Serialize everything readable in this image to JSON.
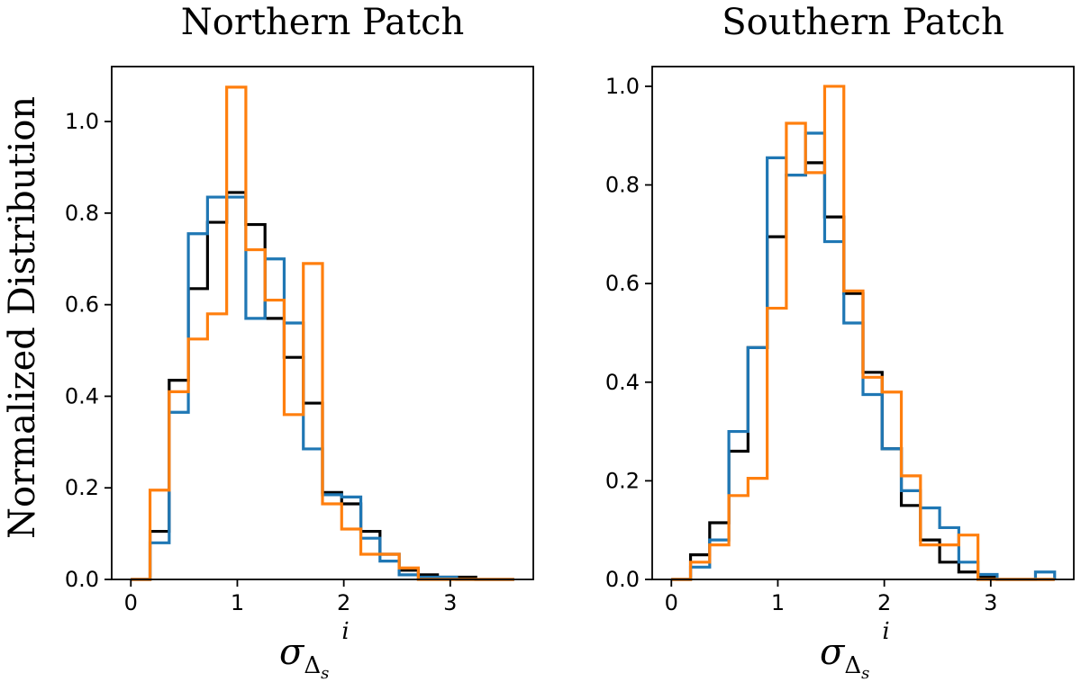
{
  "chart_data": [
    {
      "type": "step-histogram",
      "title": "Northern Patch",
      "ylabel": "Normalized Distribution",
      "xlabel": {
        "base": "σ",
        "sub": "Δ",
        "subsub": "s",
        "sup": "i"
      },
      "xlim": [
        -0.18,
        3.78
      ],
      "ylim": [
        0,
        1.12
      ],
      "xticks": [
        0,
        1,
        2,
        3
      ],
      "yticks": [
        0.0,
        0.2,
        0.4,
        0.6,
        0.8,
        1.0
      ],
      "ytick_labels": [
        "0.0",
        "0.2",
        "0.4",
        "0.6",
        "0.8",
        "1.0"
      ],
      "bin_edges": [
        0.0,
        0.18,
        0.36,
        0.54,
        0.72,
        0.9,
        1.08,
        1.26,
        1.44,
        1.62,
        1.8,
        1.98,
        2.16,
        2.34,
        2.52,
        2.7,
        2.88,
        3.06,
        3.24,
        3.42,
        3.6
      ],
      "series": [
        {
          "color": "#000000",
          "values": [
            0.0,
            0.105,
            0.435,
            0.635,
            0.78,
            0.845,
            0.775,
            0.57,
            0.485,
            0.385,
            0.19,
            0.165,
            0.105,
            0.055,
            0.02,
            0.01,
            0.005,
            0.005,
            0.0,
            0.0
          ]
        },
        {
          "color": "#1f77b4",
          "values": [
            0.0,
            0.08,
            0.365,
            0.755,
            0.835,
            0.835,
            0.57,
            0.7,
            0.56,
            0.285,
            0.185,
            0.18,
            0.09,
            0.04,
            0.01,
            0.005,
            0.005,
            0.0,
            0.0,
            0.0
          ]
        },
        {
          "color": "#ff7f0e",
          "values": [
            0.0,
            0.195,
            0.41,
            0.525,
            0.58,
            1.075,
            0.72,
            0.61,
            0.36,
            0.69,
            0.165,
            0.11,
            0.055,
            0.055,
            0.025,
            0.0,
            0.0,
            0.0,
            0.0,
            0.0
          ]
        }
      ]
    },
    {
      "type": "step-histogram",
      "title": "Southern Patch",
      "xlabel": {
        "base": "σ",
        "sub": "Δ",
        "subsub": "s",
        "sup": "i"
      },
      "xlim": [
        -0.18,
        3.78
      ],
      "ylim": [
        0,
        1.04
      ],
      "xticks": [
        0,
        1,
        2,
        3
      ],
      "yticks": [
        0.0,
        0.2,
        0.4,
        0.6,
        0.8,
        1.0
      ],
      "ytick_labels": [
        "0.0",
        "0.2",
        "0.4",
        "0.6",
        "0.8",
        "1.0"
      ],
      "bin_edges": [
        0.0,
        0.18,
        0.36,
        0.54,
        0.72,
        0.9,
        1.08,
        1.26,
        1.44,
        1.62,
        1.8,
        1.98,
        2.16,
        2.34,
        2.52,
        2.7,
        2.88,
        3.06,
        3.24,
        3.42,
        3.6
      ],
      "series": [
        {
          "color": "#000000",
          "values": [
            0.0,
            0.05,
            0.115,
            0.26,
            0.47,
            0.695,
            0.82,
            0.845,
            0.735,
            0.58,
            0.42,
            0.265,
            0.15,
            0.08,
            0.035,
            0.015,
            0.005,
            0.0,
            0.0,
            0.0
          ]
        },
        {
          "color": "#1f77b4",
          "values": [
            0.0,
            0.025,
            0.08,
            0.3,
            0.47,
            0.855,
            0.82,
            0.905,
            0.685,
            0.52,
            0.375,
            0.265,
            0.18,
            0.145,
            0.105,
            0.035,
            0.01,
            0.0,
            0.0,
            0.015
          ]
        },
        {
          "color": "#ff7f0e",
          "values": [
            0.0,
            0.035,
            0.07,
            0.17,
            0.205,
            0.55,
            0.925,
            0.825,
            1.0,
            0.585,
            0.41,
            0.38,
            0.21,
            0.07,
            0.07,
            0.09,
            0.0,
            0.0,
            0.0,
            0.0
          ]
        }
      ]
    }
  ]
}
